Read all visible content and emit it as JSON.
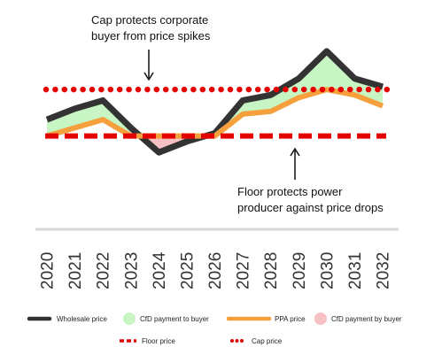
{
  "chart_data": {
    "type": "line",
    "categories": [
      "2020",
      "2021",
      "2022",
      "2023",
      "2024",
      "2025",
      "2026",
      "2027",
      "2028",
      "2029",
      "2030",
      "2031",
      "2032"
    ],
    "series": [
      {
        "name": "Wholesale price",
        "values": [
          66,
          70,
          73,
          63,
          54,
          58,
          61,
          73,
          75,
          81,
          91,
          81,
          78
        ],
        "color": "#333333"
      },
      {
        "name": "PPA price",
        "values": [
          60,
          63,
          66,
          60,
          60,
          60,
          60,
          68,
          69,
          74,
          77,
          75,
          71
        ],
        "color": "#F5A03D"
      },
      {
        "name": "Floor price",
        "values": [
          60,
          60,
          60,
          60,
          60,
          60,
          60,
          60,
          60,
          60,
          60,
          60,
          60
        ],
        "color": "#E50000"
      },
      {
        "name": "Cap price",
        "values": [
          77,
          77,
          77,
          77,
          77,
          77,
          77,
          77,
          77,
          77,
          77,
          77,
          77
        ],
        "color": "#E50000"
      }
    ],
    "fills": [
      {
        "name": "CfD payment to buyer",
        "color": "#C8F5C4"
      },
      {
        "name": "CfD payment by buyer",
        "color": "#F7C1C3"
      }
    ],
    "ylim": [
      45,
      100
    ],
    "grid": false,
    "legend_position": "bottom"
  },
  "annotations": {
    "cap_line1": "Cap protects corporate",
    "cap_line2": "buyer from price spikes",
    "floor_line1": "Floor protects power",
    "floor_line2": "producer against price drops"
  },
  "colors": {
    "axis": "#d9d9d9",
    "arrow": "#111111"
  }
}
